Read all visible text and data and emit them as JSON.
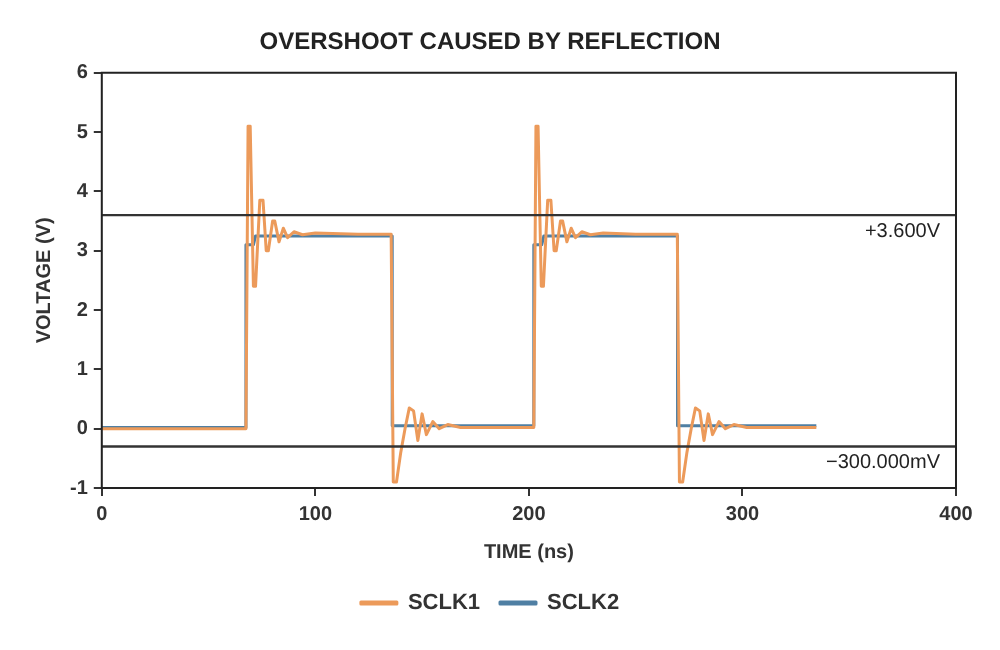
{
  "chart_data": {
    "type": "line",
    "title": "OVERSHOOT CAUSED BY REFLECTION",
    "xlabel": "TIME (ns)",
    "ylabel": "VOLTAGE (V)",
    "xlim": [
      0,
      400
    ],
    "xticks": [
      0,
      100,
      200,
      300,
      400
    ],
    "ylim": [
      -1,
      6
    ],
    "yticks": [
      -1,
      0,
      1,
      2,
      3,
      4,
      5,
      6
    ],
    "grid": false,
    "legend": "bottom",
    "marker": "none",
    "line_style": "solid",
    "ref_lines": [
      {
        "axis": "y",
        "value": 3.6,
        "label": "+3.600V",
        "color": "#333333"
      },
      {
        "axis": "y",
        "value": -0.3,
        "label": "−300.000mV",
        "color": "#333333"
      }
    ],
    "series": [
      {
        "name": "SCLK1",
        "color": "#ec9a5a",
        "x": [
          0,
          67.5,
          68.5,
          69.5,
          71,
          72,
          74,
          75.5,
          77,
          78,
          80,
          81,
          83,
          85,
          87,
          90,
          94,
          100,
          120,
          135.5,
          136.5,
          138,
          140,
          142,
          144,
          146,
          148,
          150,
          152,
          155,
          158,
          162,
          168,
          202.3,
          203.3,
          204.3,
          205.8,
          206.8,
          208.8,
          210.3,
          211.8,
          212.8,
          214.8,
          215.8,
          217.8,
          219.8,
          221.8,
          224.8,
          228.8,
          234.8,
          250,
          269.5,
          270.5,
          272,
          274,
          276,
          278,
          280,
          282,
          284,
          286,
          289,
          292,
          296,
          302,
          334.6
        ],
        "values": [
          0,
          0,
          5.1,
          5.1,
          2.4,
          2.4,
          3.85,
          3.85,
          3.0,
          3.0,
          3.5,
          3.5,
          3.15,
          3.38,
          3.22,
          3.32,
          3.27,
          3.3,
          3.28,
          3.28,
          -0.9,
          -0.9,
          -0.4,
          0,
          0.35,
          0.3,
          -0.2,
          0.25,
          -0.1,
          0.12,
          0,
          0.07,
          0.02,
          0.02,
          5.1,
          5.1,
          2.4,
          2.4,
          3.85,
          3.85,
          3.0,
          3.0,
          3.5,
          3.5,
          3.15,
          3.38,
          3.22,
          3.32,
          3.27,
          3.3,
          3.28,
          3.28,
          -0.9,
          -0.9,
          -0.4,
          0,
          0.35,
          0.3,
          -0.2,
          0.25,
          -0.1,
          0.12,
          0,
          0.07,
          0.02,
          0.02
        ]
      },
      {
        "name": "SCLK2",
        "color": "#4f7fa3",
        "x": [
          0,
          67.5,
          67.5,
          71,
          72,
          136,
          136,
          202.3,
          202.3,
          206,
          207,
          269.6,
          269.6,
          334.6
        ],
        "values": [
          0.02,
          0.02,
          3.1,
          3.1,
          3.25,
          3.25,
          0.05,
          0.05,
          3.1,
          3.1,
          3.25,
          3.25,
          0.05,
          0.05
        ]
      }
    ]
  }
}
